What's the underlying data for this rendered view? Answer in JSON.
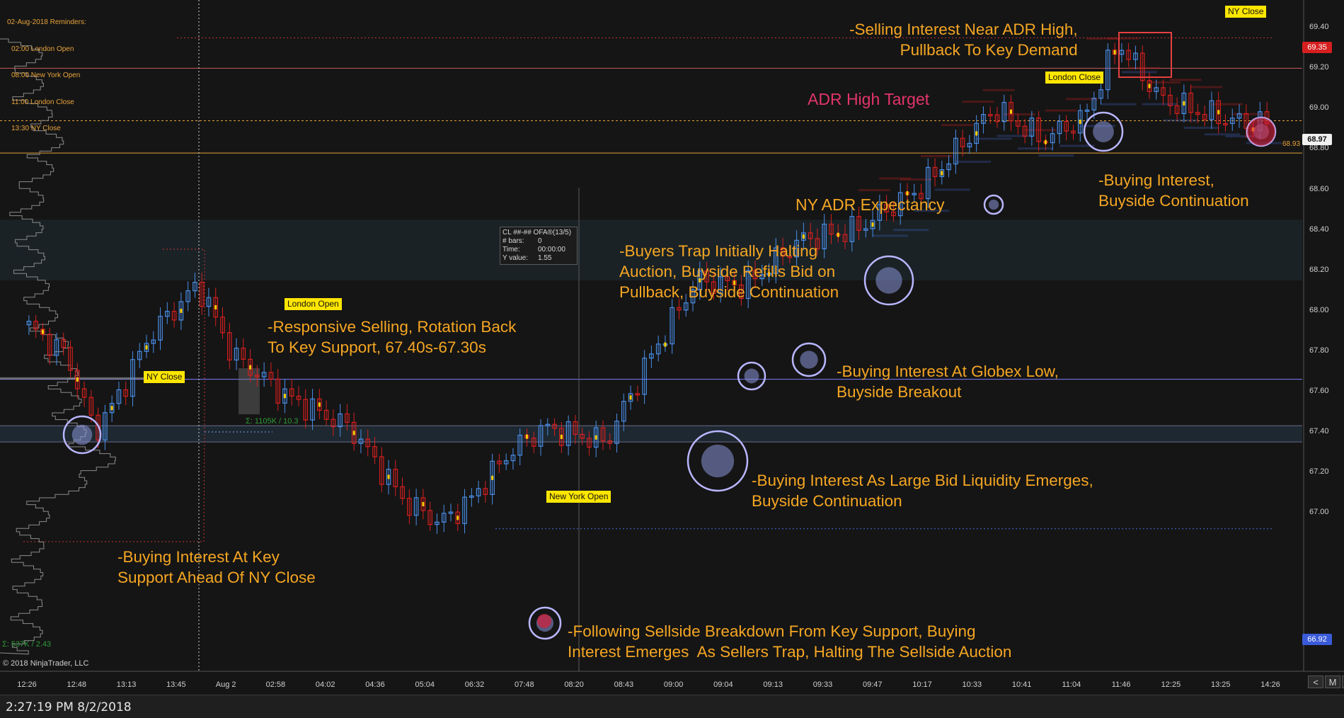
{
  "reminders": {
    "title": "02-Aug-2018 Reminders:",
    "items": [
      "02:00 London Open",
      "08:00 New York Open",
      "11:00 London Close",
      "13:30 NY Close"
    ]
  },
  "copyright": "© 2018 NinjaTrader, LLC",
  "status_time": "2:27:19 PM 8/2/2018",
  "nav": {
    "prev": "<",
    "mode": "M",
    "next": ">"
  },
  "data_box": {
    "instrument": "CL ##-## OFA®(13/5)",
    "rows": [
      {
        "k": "# bars:",
        "v": "0"
      },
      {
        "k": "Time:",
        "v": "00:00:00"
      },
      {
        "k": "Y value:",
        "v": "1.55"
      }
    ]
  },
  "session_tags": {
    "ny_close_left": "NY Close",
    "london_open": "London Open",
    "new_york_open": "New York Open",
    "london_close": "London Close",
    "ny_close_right": "NY Close"
  },
  "annotations": {
    "selling_adr_high": "-Selling Interest Near ADR High,\nPullback To Key Demand",
    "adr_high_target": "ADR High Target",
    "ny_adr_expectancy": "NY ADR Expectancy",
    "buying_buyside_cont": "-Buying Interest,\nBuyside Continuation",
    "buyers_trap": "-Buyers Trap Initially Halting\nAuction, Buyside Refills Bid on\nPullback, Buyside Continuation",
    "responsive_selling": "-Responsive Selling, Rotation Back\nTo Key Support, 67.40s-67.30s",
    "globex_low": "-Buying Interest At Globex Low,\nBuyside Breakout",
    "large_bid": "-Buying Interest As Large Bid Liquidity Emerges,\nBuyside Continuation",
    "key_support": "-Buying Interest At Key\nSupport Ahead Of NY Close",
    "sellside_breakdown": "-Following Sellside Breakdown From Key Support, Buying\nInterest Emerges  As Sellers Trap, Halting The Sellside Auction"
  },
  "volume_labels": {
    "profile_total": "Σ: 537K / 2.43",
    "inner_total": "Σ: 1105K / 10.3"
  },
  "colors": {
    "background": "#151515",
    "up_candle": "#4a8ee8",
    "down_candle": "#d61f1f",
    "annotation": "#f5a623",
    "target": "#e2356a",
    "level_orange": "#e8a33a",
    "level_blue": "#7b7bff",
    "circle": "#b9b6ff",
    "tag_bg": "#ffe600"
  },
  "chart_data": {
    "type": "candlestick",
    "instrument": "CL ##-## OFA®(13/5)",
    "y_axis": {
      "min": 66.82,
      "max": 69.5,
      "ticks": [
        "69.40",
        "69.20",
        "69.00",
        "68.80",
        "68.60",
        "68.40",
        "68.20",
        "68.00",
        "67.80",
        "67.60",
        "67.40",
        "67.20",
        "67.00"
      ]
    },
    "x_axis": {
      "ticks": [
        "12:26",
        "12:48",
        "13:13",
        "13:45",
        "Aug 2",
        "02:58",
        "04:02",
        "04:36",
        "05:04",
        "06:32",
        "07:48",
        "08:20",
        "08:43",
        "09:00",
        "09:04",
        "09:13",
        "09:33",
        "09:47",
        "10:17",
        "10:33",
        "10:41",
        "11:04",
        "11:46",
        "12:25",
        "13:25",
        "14:26"
      ]
    },
    "last_price": "68.97",
    "upper_badge": "69.35",
    "lower_badge": "66.92",
    "small_price_label": "68.93",
    "levels": [
      {
        "name": "ADR High",
        "price": 69.2
      },
      {
        "name": "NY ADR Expectancy",
        "price": 68.78
      },
      {
        "name": "Key Support",
        "price": 67.66
      },
      {
        "name": "Zone High",
        "price": 67.43
      },
      {
        "name": "Zone Low",
        "price": 67.35
      }
    ],
    "pivots": [
      [
        0,
        67.93
      ],
      [
        6,
        67.78
      ],
      [
        10,
        67.4
      ],
      [
        13,
        67.55
      ],
      [
        18,
        67.88
      ],
      [
        25,
        68.13
      ],
      [
        30,
        67.78
      ],
      [
        38,
        67.57
      ],
      [
        47,
        67.42
      ],
      [
        55,
        67.05
      ],
      [
        60,
        66.95
      ],
      [
        64,
        67.05
      ],
      [
        70,
        67.3
      ],
      [
        75,
        67.42
      ],
      [
        84,
        67.35
      ],
      [
        90,
        67.75
      ],
      [
        97,
        68.15
      ],
      [
        104,
        68.12
      ],
      [
        112,
        68.35
      ],
      [
        120,
        68.4
      ],
      [
        130,
        68.62
      ],
      [
        140,
        69.0
      ],
      [
        147,
        68.85
      ],
      [
        153,
        68.95
      ],
      [
        158,
        69.33
      ],
      [
        164,
        69.05
      ],
      [
        170,
        68.98
      ],
      [
        176,
        68.93
      ]
    ]
  }
}
